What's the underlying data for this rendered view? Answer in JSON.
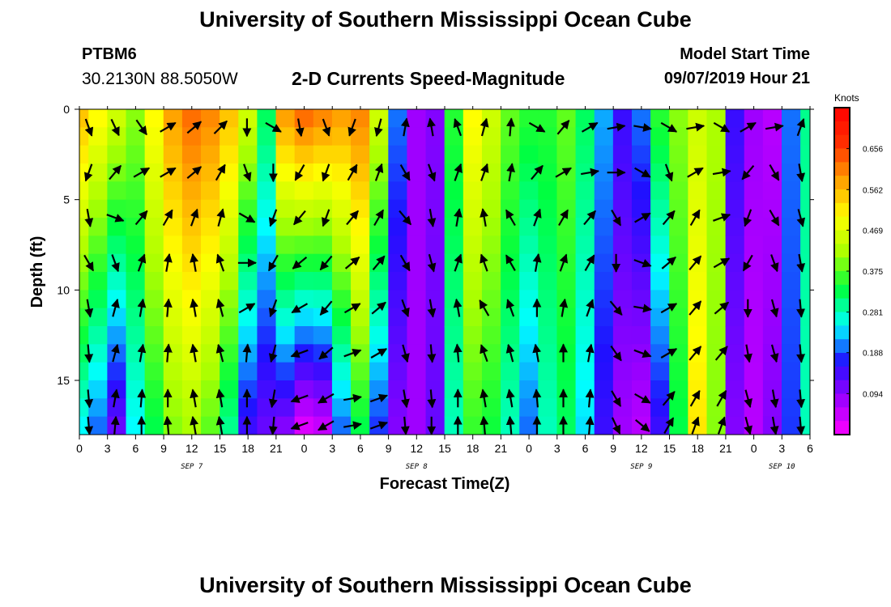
{
  "header": {
    "title": "University of Southern Mississippi Ocean Cube",
    "station_id": "PTBM6",
    "station_coords": "30.2130N 88.5050W",
    "model_start_label": "Model Start Time",
    "model_start_value": "09/07/2019 Hour 21"
  },
  "footer": {
    "title": "University of Southern Mississippi Ocean Cube"
  },
  "chart_data": {
    "type": "heatmap",
    "title": "",
    "subtitle": "2-D Currents Speed-Magnitude",
    "xlabel": "Forecast Time(Z)",
    "ylabel": "Depth (ft)",
    "x_unit": "hours from 00Z Sep 7",
    "x_range": [
      0,
      78
    ],
    "y_range": [
      0,
      18
    ],
    "y_inverted": true,
    "x_ticks": [
      {
        "x": 0,
        "label": "0"
      },
      {
        "x": 3,
        "label": "3"
      },
      {
        "x": 6,
        "label": "6"
      },
      {
        "x": 9,
        "label": "9"
      },
      {
        "x": 12,
        "label": "12"
      },
      {
        "x": 15,
        "label": "15"
      },
      {
        "x": 18,
        "label": "18"
      },
      {
        "x": 21,
        "label": "21"
      },
      {
        "x": 24,
        "label": "0"
      },
      {
        "x": 27,
        "label": "3"
      },
      {
        "x": 30,
        "label": "6"
      },
      {
        "x": 33,
        "label": "9"
      },
      {
        "x": 36,
        "label": "12"
      },
      {
        "x": 39,
        "label": "15"
      },
      {
        "x": 42,
        "label": "18"
      },
      {
        "x": 45,
        "label": "21"
      },
      {
        "x": 48,
        "label": "0"
      },
      {
        "x": 51,
        "label": "3"
      },
      {
        "x": 54,
        "label": "6"
      },
      {
        "x": 57,
        "label": "9"
      },
      {
        "x": 60,
        "label": "12"
      },
      {
        "x": 63,
        "label": "15"
      },
      {
        "x": 66,
        "label": "18"
      },
      {
        "x": 69,
        "label": "21"
      },
      {
        "x": 72,
        "label": "0"
      },
      {
        "x": 75,
        "label": "3"
      },
      {
        "x": 78,
        "label": "6"
      }
    ],
    "date_labels": [
      {
        "x": 12,
        "label": "SEP 7"
      },
      {
        "x": 36,
        "label": "SEP 8"
      },
      {
        "x": 60,
        "label": "SEP 9"
      },
      {
        "x": 75,
        "label": "SEP 10"
      }
    ],
    "y_ticks": [
      0,
      5,
      10,
      15
    ],
    "colorbar": {
      "unit": "Knots",
      "ticks": [
        0.094,
        0.188,
        0.281,
        0.375,
        0.469,
        0.562,
        0.656
      ],
      "min": 0.0,
      "max": 0.75,
      "stops": [
        "#ff00ff",
        "#9b00ff",
        "#2010ff",
        "#00ffff",
        "#00ff40",
        "#aaff00",
        "#ffff00",
        "#ffa000",
        "#ff3000",
        "#ff0000"
      ]
    },
    "grid": false,
    "columns": [
      {
        "hour": 0,
        "top": 0.55,
        "bottom": 0.25
      },
      {
        "hour": 2,
        "top": 0.5,
        "bottom": 0.2
      },
      {
        "hour": 4,
        "top": 0.45,
        "bottom": 0.12
      },
      {
        "hour": 6,
        "top": 0.4,
        "bottom": 0.25
      },
      {
        "hour": 8,
        "top": 0.5,
        "bottom": 0.33
      },
      {
        "hour": 10,
        "top": 0.58,
        "bottom": 0.4
      },
      {
        "hour": 12,
        "top": 0.62,
        "bottom": 0.42
      },
      {
        "hour": 14,
        "top": 0.6,
        "bottom": 0.38
      },
      {
        "hour": 16,
        "top": 0.55,
        "bottom": 0.3
      },
      {
        "hour": 18,
        "top": 0.45,
        "bottom": 0.15
      },
      {
        "hour": 20,
        "top": 0.32,
        "bottom": 0.12
      },
      {
        "hour": 22,
        "top": 0.58,
        "bottom": 0.1
      },
      {
        "hour": 24,
        "top": 0.62,
        "bottom": 0.03
      },
      {
        "hour": 26,
        "top": 0.6,
        "bottom": 0.05
      },
      {
        "hour": 28,
        "top": 0.58,
        "bottom": 0.2
      },
      {
        "hour": 30,
        "top": 0.6,
        "bottom": 0.33
      },
      {
        "hour": 32,
        "top": 0.45,
        "bottom": 0.18
      },
      {
        "hour": 34,
        "top": 0.2,
        "bottom": 0.1
      },
      {
        "hour": 36,
        "top": 0.08,
        "bottom": 0.08
      },
      {
        "hour": 38,
        "top": 0.1,
        "bottom": 0.12
      },
      {
        "hour": 40,
        "top": 0.35,
        "bottom": 0.28
      },
      {
        "hour": 42,
        "top": 0.5,
        "bottom": 0.36
      },
      {
        "hour": 44,
        "top": 0.45,
        "bottom": 0.34
      },
      {
        "hour": 46,
        "top": 0.38,
        "bottom": 0.28
      },
      {
        "hour": 48,
        "top": 0.35,
        "bottom": 0.2
      },
      {
        "hour": 50,
        "top": 0.35,
        "bottom": 0.28
      },
      {
        "hour": 52,
        "top": 0.38,
        "bottom": 0.32
      },
      {
        "hour": 54,
        "top": 0.32,
        "bottom": 0.24
      },
      {
        "hour": 56,
        "top": 0.22,
        "bottom": 0.15
      },
      {
        "hour": 58,
        "top": 0.15,
        "bottom": 0.08
      },
      {
        "hour": 60,
        "top": 0.2,
        "bottom": 0.06
      },
      {
        "hour": 62,
        "top": 0.35,
        "bottom": 0.15
      },
      {
        "hour": 64,
        "top": 0.4,
        "bottom": 0.33
      },
      {
        "hour": 66,
        "top": 0.45,
        "bottom": 0.52
      },
      {
        "hour": 68,
        "top": 0.42,
        "bottom": 0.4
      },
      {
        "hour": 70,
        "top": 0.15,
        "bottom": 0.1
      },
      {
        "hour": 72,
        "top": 0.08,
        "bottom": 0.06
      },
      {
        "hour": 74,
        "top": 0.06,
        "bottom": 0.1
      },
      {
        "hour": 76,
        "top": 0.2,
        "bottom": 0.18
      },
      {
        "hour": 78,
        "top": 0.3,
        "bottom": 0.28
      }
    ],
    "vector_rows_depth": [
      1,
      3.5,
      6,
      8.5,
      11,
      13.5,
      16,
      17.5
    ],
    "vector_directions_deg": [
      [
        160,
        155,
        145,
        60,
        50,
        45,
        180,
        120,
        170,
        160,
        200,
        195,
        10,
        350,
        340,
        15,
        5,
        120,
        40,
        60,
        80,
        100,
        120,
        80,
        120,
        60,
        80,
        20
      ],
      [
        200,
        40,
        60,
        60,
        50,
        30,
        160,
        180,
        210,
        200,
        30,
        20,
        150,
        160,
        20,
        20,
        10,
        40,
        60,
        80,
        90,
        120,
        160,
        60,
        80,
        220,
        150,
        170
      ],
      [
        170,
        110,
        40,
        30,
        20,
        15,
        120,
        200,
        220,
        200,
        40,
        30,
        140,
        170,
        10,
        350,
        330,
        20,
        30,
        40,
        150,
        60,
        40,
        30,
        70,
        200,
        150,
        165
      ],
      [
        150,
        160,
        20,
        10,
        350,
        340,
        90,
        210,
        230,
        220,
        50,
        40,
        150,
        165,
        20,
        340,
        330,
        10,
        20,
        30,
        180,
        110,
        50,
        40,
        60,
        210,
        160,
        170
      ],
      [
        170,
        15,
        10,
        5,
        350,
        345,
        60,
        200,
        240,
        220,
        60,
        50,
        160,
        170,
        350,
        330,
        340,
        0,
        10,
        20,
        140,
        100,
        60,
        40,
        50,
        180,
        165,
        175
      ],
      [
        175,
        15,
        10,
        5,
        350,
        345,
        5,
        195,
        250,
        230,
        70,
        60,
        165,
        175,
        355,
        340,
        345,
        350,
        0,
        10,
        145,
        110,
        60,
        40,
        40,
        170,
        165,
        175
      ],
      [
        175,
        10,
        5,
        0,
        350,
        350,
        0,
        190,
        250,
        240,
        80,
        70,
        170,
        175,
        0,
        350,
        350,
        355,
        0,
        5,
        150,
        120,
        40,
        30,
        30,
        165,
        170,
        175
      ],
      [
        175,
        5,
        0,
        355,
        350,
        350,
        0,
        185,
        250,
        240,
        80,
        70,
        175,
        180,
        0,
        355,
        355,
        0,
        0,
        5,
        155,
        130,
        30,
        20,
        20,
        165,
        170,
        175
      ]
    ]
  }
}
